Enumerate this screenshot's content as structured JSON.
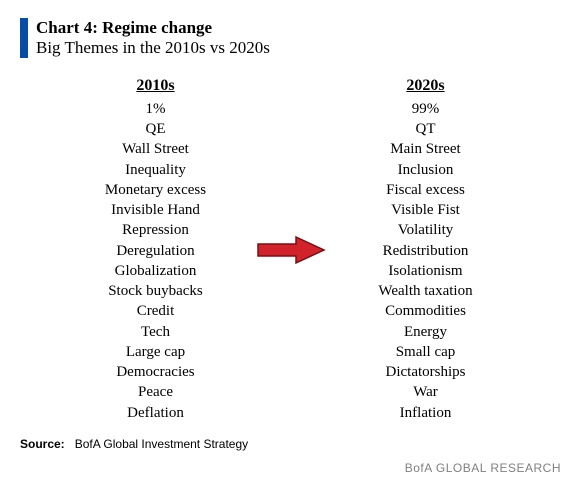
{
  "header": {
    "accent_color": "#054da7",
    "title": "Chart 4: Regime change",
    "subtitle": "Big Themes in the 2010s vs 2020s",
    "title_fontsize": 17
  },
  "columns": {
    "left_header": "2010s",
    "right_header": "2020s",
    "header_fontsize": 16,
    "item_fontsize": 15,
    "left": [
      "1%",
      "QE",
      "Wall Street",
      "Inequality",
      "Monetary excess",
      "Invisible Hand",
      "Repression",
      "Deregulation",
      "Globalization",
      "Stock buybacks",
      "Credit",
      "Tech",
      "Large cap",
      "Democracies",
      "Peace",
      "Deflation"
    ],
    "right": [
      "99%",
      "QT",
      "Main Street",
      "Inclusion",
      "Fiscal excess",
      "Visible Fist",
      "Volatility",
      "Redistribution",
      "Isolationism",
      "Wealth taxation",
      "Commodities",
      "Energy",
      "Small cap",
      "Dictatorships",
      "War",
      "Inflation"
    ]
  },
  "arrow": {
    "color": "#d2232a",
    "border_color": "#7a0e14",
    "width": 70,
    "height": 30
  },
  "footer": {
    "source_label": "Source:",
    "source_text": "BofA Global Investment Strategy",
    "brand": "BofA GLOBAL RESEARCH",
    "brand_color": "#808080"
  },
  "background_color": "#ffffff"
}
